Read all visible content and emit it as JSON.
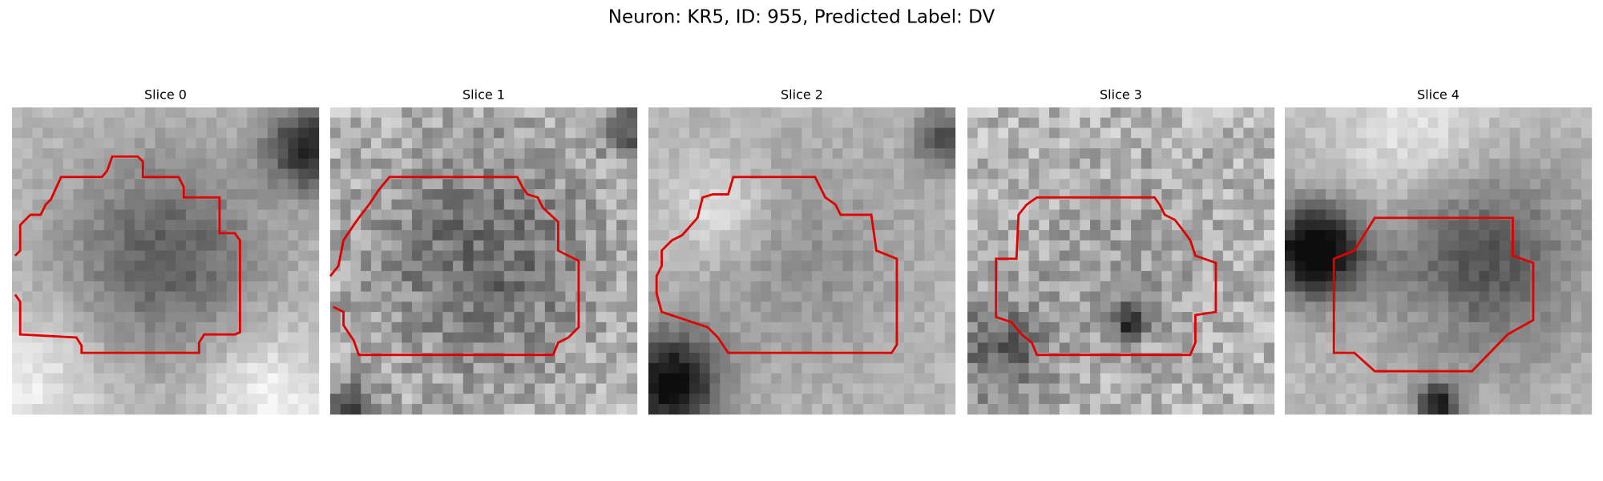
{
  "title": "Neuron: KR5, ID: 955, Predicted Label: DV",
  "panels": [
    {
      "title": "Slice 0"
    },
    {
      "title": "Slice 1"
    },
    {
      "title": "Slice 2"
    },
    {
      "title": "Slice 3"
    },
    {
      "title": "Slice 4"
    }
  ]
}
